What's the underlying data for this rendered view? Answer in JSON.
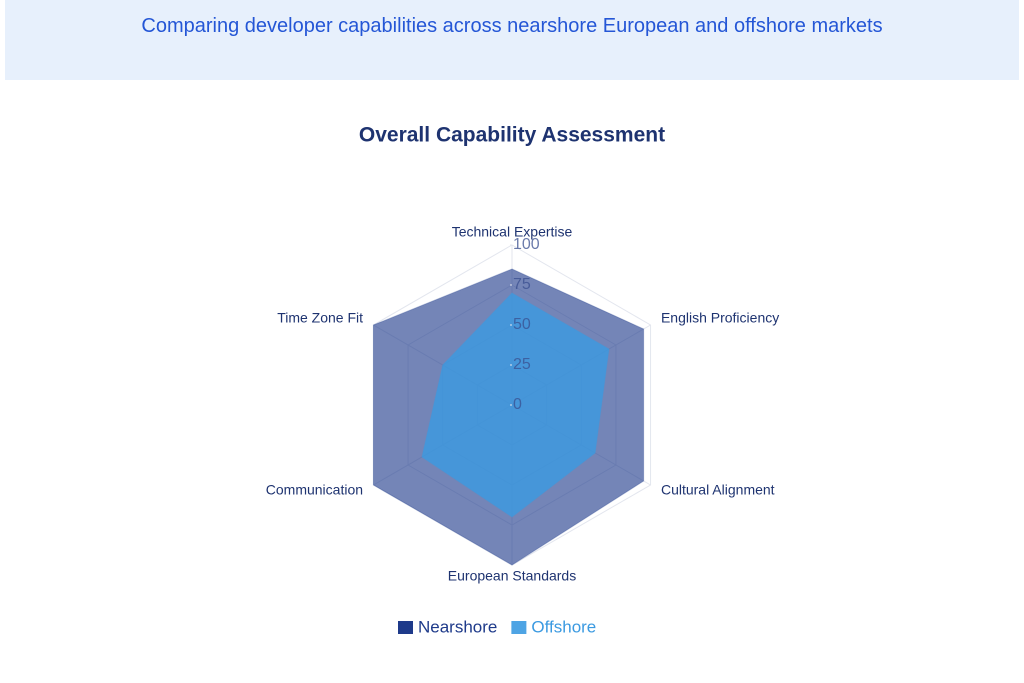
{
  "header": {
    "subtitle": "Comparing developer capabilities across nearshore European and offshore markets"
  },
  "chart_data": {
    "type": "radar",
    "title": "Overall Capability Assessment",
    "categories": [
      "Technical Expertise",
      "English Proficiency",
      "Cultural Alignment",
      "European Standards",
      "Communication",
      "Time Zone Fit"
    ],
    "series": [
      {
        "name": "Nearshore",
        "color": "#1e3a8a",
        "values": [
          85,
          95,
          95,
          100,
          100,
          100
        ]
      },
      {
        "name": "Offshore",
        "color": "#3b9ae1",
        "values": [
          70,
          70,
          60,
          70,
          65,
          50
        ]
      }
    ],
    "rlim": [
      0,
      100
    ],
    "rticks": [
      0,
      25,
      50,
      75,
      100
    ],
    "grid": true
  }
}
